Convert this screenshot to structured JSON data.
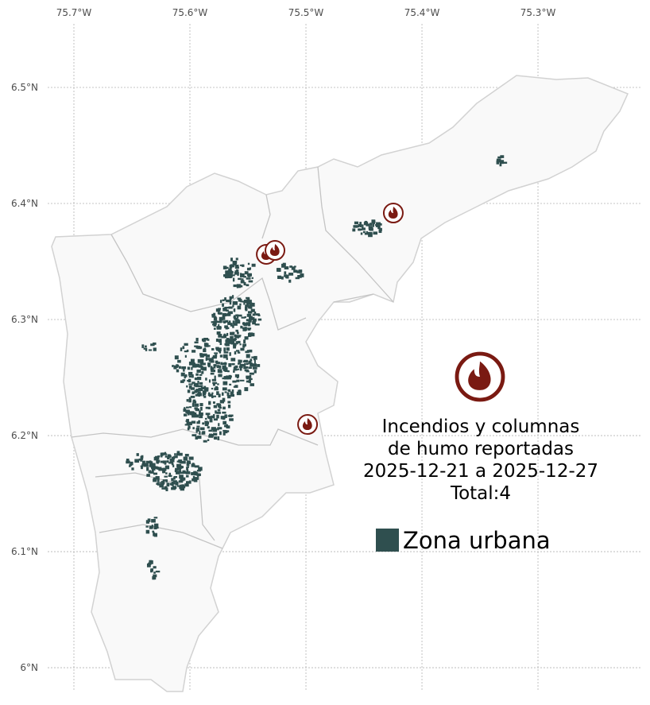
{
  "map": {
    "lon_range": [
      -75.7226,
      -75.2103
    ],
    "lat_range": [
      5.9795,
      6.5548
    ],
    "lon_ticks": [
      {
        "value": -75.7,
        "label": "75.7°W"
      },
      {
        "value": -75.6,
        "label": "75.6°W"
      },
      {
        "value": -75.5,
        "label": "75.5°W"
      },
      {
        "value": -75.4,
        "label": "75.4°W"
      },
      {
        "value": -75.3,
        "label": "75.3°W"
      }
    ],
    "lat_ticks": [
      {
        "value": 6.5,
        "label": "6.5°N"
      },
      {
        "value": 6.4,
        "label": "6.4°N"
      },
      {
        "value": 6.3,
        "label": "6.3°N"
      },
      {
        "value": 6.2,
        "label": "6.2°N"
      },
      {
        "value": 6.1,
        "label": "6.1°N"
      },
      {
        "value": 6.0,
        "label": "6°N"
      }
    ],
    "fires": [
      {
        "lon": -75.5342,
        "lat": 6.3562
      },
      {
        "lon": -75.5267,
        "lat": 6.3596
      },
      {
        "lon": -75.4247,
        "lat": 6.3918
      },
      {
        "lon": -75.4986,
        "lat": 6.2096
      }
    ],
    "fire_color": "#7a1a12",
    "legend": {
      "title_lines": [
        "Incendios y columnas",
        "de humo reportadas",
        "2025-12-21 a 2025-12-27",
        "Total:4"
      ],
      "urban_label": "Zona urbana",
      "urban_color": "#2f4f4f"
    }
  }
}
